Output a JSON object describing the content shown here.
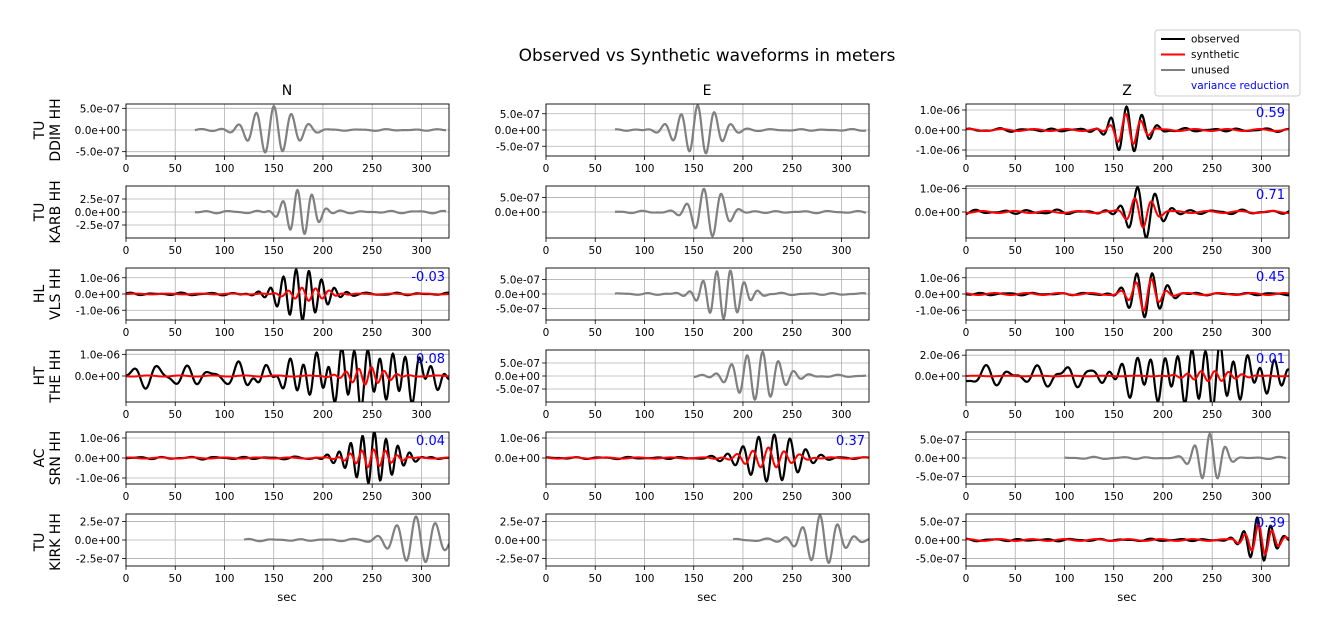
{
  "title": "Observed vs Synthetic waveforms in meters",
  "legend": {
    "placement": "top-right",
    "items": [
      {
        "label": "observed",
        "color": "#000000"
      },
      {
        "label": "synthetic",
        "color": "#ff0000"
      },
      {
        "label": "unused",
        "color": "#808080"
      },
      {
        "label": "variance reduction",
        "color": "#0000ff",
        "text_only": true
      }
    ]
  },
  "columns": [
    "N",
    "E",
    "Z"
  ],
  "xlabel": "sec",
  "rows": [
    {
      "network": "TU",
      "station": "DDIM HH"
    },
    {
      "network": "TU",
      "station": "KARB HH"
    },
    {
      "network": "HL",
      "station": "VLS HH"
    },
    {
      "network": "HT",
      "station": "THE HH"
    },
    {
      "network": "AC",
      "station": "SRN HH"
    },
    {
      "network": "TU",
      "station": "KIRK HH"
    }
  ],
  "chart_data": {
    "type": "line",
    "grid": true,
    "xlim": [
      0,
      328
    ],
    "xticks": [
      0,
      50,
      100,
      150,
      200,
      250,
      300
    ],
    "colors": {
      "observed": "#000000",
      "synthetic": "#ff0000",
      "unused": "#808080",
      "vr": "#0000ff"
    },
    "panels": [
      {
        "row": 0,
        "col": 0,
        "used": false,
        "vr": null,
        "ylim": [
          -6e-07,
          6e-07
        ],
        "yticks": [
          5e-07,
          0,
          -5e-07
        ],
        "ytick_labels": [
          "5.0e-07",
          "0.0e+00",
          "-5.0e-07"
        ],
        "observed": {
          "start": 70,
          "end": 325,
          "center": 150,
          "width": 30,
          "amp": 5.5e-07,
          "period": 18,
          "noise": 0.04
        }
      },
      {
        "row": 0,
        "col": 1,
        "used": false,
        "vr": null,
        "ylim": [
          -8e-07,
          8e-07
        ],
        "yticks": [
          5e-07,
          0,
          -5e-07
        ],
        "ytick_labels": [
          "5.0e-07",
          "0.0e+00",
          "-5.0e-07"
        ],
        "observed": {
          "start": 70,
          "end": 325,
          "center": 155,
          "width": 28,
          "amp": 7.5e-07,
          "period": 17,
          "noise": 0.04
        }
      },
      {
        "row": 0,
        "col": 2,
        "used": true,
        "vr": "0.59",
        "ylim": [
          -1.3e-06,
          1.3e-06
        ],
        "yticks": [
          1e-06,
          0,
          -1e-06
        ],
        "ytick_labels": [
          "1.0e-06",
          "0.0e+00",
          "-1.0e-06"
        ],
        "observed": {
          "start": 0,
          "end": 328,
          "center": 165,
          "width": 22,
          "amp": 1.2e-06,
          "period": 16,
          "noise": 0.08
        },
        "synthetic": {
          "center": 165,
          "width": 18,
          "amp": 8e-07,
          "period": 16
        }
      },
      {
        "row": 1,
        "col": 0,
        "used": false,
        "vr": null,
        "ylim": [
          -5e-07,
          5e-07
        ],
        "yticks": [
          2.5e-07,
          0,
          -2.5e-07
        ],
        "ytick_labels": [
          "2.5e-07",
          "0.0e+00",
          "-2.5e-07"
        ],
        "observed": {
          "start": 70,
          "end": 325,
          "center": 177,
          "width": 20,
          "amp": 4.5e-07,
          "period": 15,
          "noise": 0.06
        }
      },
      {
        "row": 1,
        "col": 1,
        "used": false,
        "vr": null,
        "ylim": [
          -9e-07,
          9e-07
        ],
        "yticks": [
          5e-07,
          0
        ],
        "ytick_labels": [
          "5.0e-07",
          "0.0e+00"
        ],
        "observed": {
          "start": 70,
          "end": 325,
          "center": 165,
          "width": 22,
          "amp": 8.5e-07,
          "period": 18,
          "noise": 0.05
        }
      },
      {
        "row": 1,
        "col": 2,
        "used": true,
        "vr": "0.71",
        "ylim": [
          -1.1e-06,
          1.1e-06
        ],
        "yticks": [
          1e-06,
          0
        ],
        "ytick_labels": [
          "1.0e-06",
          "0.0e+00"
        ],
        "observed": {
          "start": 0,
          "end": 328,
          "center": 180,
          "width": 22,
          "amp": 1.05e-06,
          "period": 18,
          "noise": 0.1
        },
        "synthetic": {
          "center": 178,
          "width": 16,
          "amp": 7e-07,
          "period": 18
        }
      },
      {
        "row": 2,
        "col": 0,
        "used": true,
        "vr": "-0.03",
        "ylim": [
          -1.6e-06,
          1.6e-06
        ],
        "yticks": [
          1e-06,
          0,
          -1e-06
        ],
        "ytick_labels": [
          "1.0e-06",
          "0.0e+00",
          "-1.0e-06"
        ],
        "observed": {
          "start": 0,
          "end": 328,
          "center": 178,
          "width": 28,
          "amp": 1.55e-06,
          "period": 13,
          "noise": 0.06
        },
        "synthetic": {
          "center": 185,
          "width": 25,
          "amp": 4e-07,
          "period": 14
        }
      },
      {
        "row": 2,
        "col": 1,
        "used": false,
        "vr": null,
        "ylim": [
          -9e-07,
          9e-07
        ],
        "yticks": [
          5e-07,
          0,
          -5e-07
        ],
        "ytick_labels": [
          "5.0e-07",
          "0.0e+00",
          "-5.0e-07"
        ],
        "observed": {
          "start": 70,
          "end": 325,
          "center": 180,
          "width": 25,
          "amp": 8.5e-07,
          "period": 14,
          "noise": 0.05
        }
      },
      {
        "row": 2,
        "col": 2,
        "used": true,
        "vr": "0.45",
        "ylim": [
          -1.6e-06,
          1.6e-06
        ],
        "yticks": [
          1e-06,
          0,
          -1e-06
        ],
        "ytick_labels": [
          "1.0e-06",
          "0.0e+00",
          "-1.0e-06"
        ],
        "observed": {
          "start": 0,
          "end": 328,
          "center": 182,
          "width": 22,
          "amp": 1.45e-06,
          "period": 16,
          "noise": 0.06
        },
        "synthetic": {
          "center": 182,
          "width": 18,
          "amp": 1e-06,
          "period": 16
        }
      },
      {
        "row": 3,
        "col": 0,
        "used": true,
        "vr": "0.08",
        "ylim": [
          -1.2e-06,
          1.2e-06
        ],
        "yticks": [
          1e-06,
          0
        ],
        "ytick_labels": [
          "1.0e-06",
          "0.0e+00"
        ],
        "observed": {
          "start": 0,
          "end": 328,
          "center": 240,
          "width": 80,
          "amp": 1.1e-06,
          "period": 13,
          "noise": 0.55
        },
        "synthetic": {
          "center": 245,
          "width": 25,
          "amp": 4e-07,
          "period": 13
        }
      },
      {
        "row": 3,
        "col": 1,
        "used": false,
        "vr": null,
        "ylim": [
          -1e-06,
          1e-06
        ],
        "yticks": [
          5e-07,
          0,
          -5e-07
        ],
        "ytick_labels": [
          "5.0e-07",
          "0.0e+00",
          "-5.0e-07"
        ],
        "observed": {
          "start": 150,
          "end": 325,
          "center": 215,
          "width": 30,
          "amp": 9.5e-07,
          "period": 16,
          "noise": 0.05
        }
      },
      {
        "row": 3,
        "col": 2,
        "used": true,
        "vr": "0.01",
        "ylim": [
          -2.5e-06,
          2.5e-06
        ],
        "yticks": [
          2e-06,
          0
        ],
        "ytick_labels": [
          "2.0e-06",
          "0.0e+00"
        ],
        "observed": {
          "start": 0,
          "end": 328,
          "center": 240,
          "width": 80,
          "amp": 2.4e-06,
          "period": 14,
          "noise": 0.5
        },
        "synthetic": {
          "center": 250,
          "width": 30,
          "amp": 5e-07,
          "period": 14
        }
      },
      {
        "row": 4,
        "col": 0,
        "used": true,
        "vr": "0.04",
        "ylim": [
          -1.3e-06,
          1.3e-06
        ],
        "yticks": [
          1e-06,
          0,
          -1e-06
        ],
        "ytick_labels": [
          "1.0e-06",
          "0.0e+00",
          "-1.0e-06"
        ],
        "observed": {
          "start": 0,
          "end": 328,
          "center": 250,
          "width": 30,
          "amp": 1.25e-06,
          "period": 12,
          "noise": 0.06
        },
        "synthetic": {
          "center": 250,
          "width": 25,
          "amp": 4.5e-07,
          "period": 12
        }
      },
      {
        "row": 4,
        "col": 1,
        "used": true,
        "vr": "0.37",
        "ylim": [
          -1.3e-06,
          1.3e-06
        ],
        "yticks": [
          1e-06,
          0
        ],
        "ytick_labels": [
          "1.0e-06",
          "0.0e+00"
        ],
        "observed": {
          "start": 0,
          "end": 328,
          "center": 230,
          "width": 35,
          "amp": 1.2e-06,
          "period": 16,
          "noise": 0.05
        },
        "synthetic": {
          "center": 225,
          "width": 30,
          "amp": 5e-07,
          "period": 16
        }
      },
      {
        "row": 4,
        "col": 2,
        "used": false,
        "vr": null,
        "ylim": [
          -7e-07,
          7e-07
        ],
        "yticks": [
          5e-07,
          0,
          -5e-07
        ],
        "ytick_labels": [
          "5.0e-07",
          "0.0e+00",
          "-5.0e-07"
        ],
        "observed": {
          "start": 100,
          "end": 325,
          "center": 247,
          "width": 18,
          "amp": 6.5e-07,
          "period": 16,
          "noise": 0.05
        }
      },
      {
        "row": 5,
        "col": 0,
        "used": false,
        "vr": null,
        "ylim": [
          -3.5e-07,
          3.5e-07
        ],
        "yticks": [
          2.5e-07,
          0,
          -2.5e-07
        ],
        "ytick_labels": [
          "2.5e-07",
          "0.0e+00",
          "-2.5e-07"
        ],
        "observed": {
          "start": 120,
          "end": 328,
          "center": 295,
          "width": 30,
          "amp": 3.2e-07,
          "period": 20,
          "noise": 0.05
        }
      },
      {
        "row": 5,
        "col": 1,
        "used": false,
        "vr": null,
        "ylim": [
          -3.5e-07,
          3.5e-07
        ],
        "yticks": [
          2.5e-07,
          0,
          -2.5e-07
        ],
        "ytick_labels": [
          "2.5e-07",
          "0.0e+00",
          "-2.5e-07"
        ],
        "observed": {
          "start": 190,
          "end": 328,
          "center": 280,
          "width": 25,
          "amp": 3.2e-07,
          "period": 18,
          "noise": 0.06
        }
      },
      {
        "row": 5,
        "col": 2,
        "used": true,
        "vr": "0.39",
        "ylim": [
          -7e-07,
          7e-07
        ],
        "yticks": [
          5e-07,
          0,
          -5e-07
        ],
        "ytick_labels": [
          "5.0e-07",
          "0.0e+00",
          "-5.0e-07"
        ],
        "observed": {
          "start": 0,
          "end": 328,
          "center": 298,
          "width": 18,
          "amp": 6e-07,
          "period": 14,
          "noise": 0.06
        },
        "synthetic": {
          "center": 300,
          "width": 18,
          "amp": 4e-07,
          "period": 14
        }
      }
    ]
  }
}
